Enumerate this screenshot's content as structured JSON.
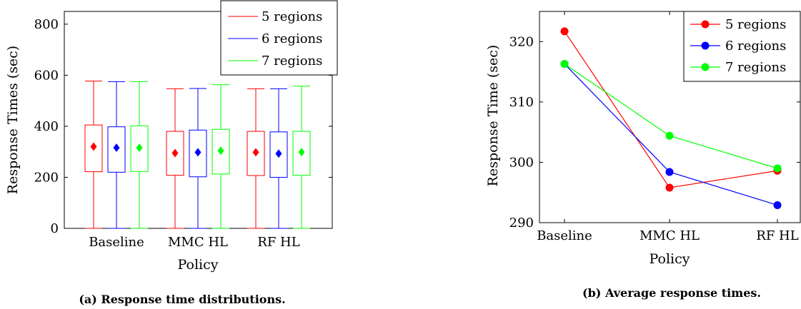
{
  "chart_data": [
    {
      "type": "box",
      "ylabel": "Response Times (sec)",
      "xlabel": "Policy",
      "ylim": [
        0,
        850
      ],
      "yticks": [
        0,
        200,
        400,
        600,
        800
      ],
      "categories": [
        "Baseline",
        "MMC HL",
        "RF HL"
      ],
      "legend_position": "top-right",
      "series": [
        {
          "name": "5 regions",
          "color": "#ff0000",
          "boxes": [
            {
              "min": 0,
              "q1": 222,
              "median": 320,
              "q3": 405,
              "max": 577
            },
            {
              "min": 0,
              "q1": 208,
              "median": 295,
              "q3": 380,
              "max": 547
            },
            {
              "min": 0,
              "q1": 207,
              "median": 298,
              "q3": 380,
              "max": 547
            }
          ]
        },
        {
          "name": "6 regions",
          "color": "#0000ff",
          "boxes": [
            {
              "min": 0,
              "q1": 220,
              "median": 316,
              "q3": 398,
              "max": 575
            },
            {
              "min": 0,
              "q1": 202,
              "median": 298,
              "q3": 385,
              "max": 548
            },
            {
              "min": 0,
              "q1": 200,
              "median": 293,
              "q3": 378,
              "max": 547
            }
          ]
        },
        {
          "name": "7 regions",
          "color": "#00ff00",
          "boxes": [
            {
              "min": 0,
              "q1": 223,
              "median": 316,
              "q3": 402,
              "max": 575
            },
            {
              "min": 0,
              "q1": 213,
              "median": 304,
              "q3": 388,
              "max": 563
            },
            {
              "min": 0,
              "q1": 208,
              "median": 299,
              "q3": 380,
              "max": 557
            }
          ]
        }
      ],
      "caption": "(a) Response time distributions."
    },
    {
      "type": "line",
      "ylabel": "Response Time (sec)",
      "xlabel": "Policy",
      "ylim": [
        290,
        325
      ],
      "yticks": [
        290,
        300,
        310,
        320
      ],
      "categories": [
        "Baseline",
        "MMC HL",
        "RF HL"
      ],
      "legend_position": "top-right",
      "series": [
        {
          "name": "5 regions",
          "color": "#ff0000",
          "values": [
            321.7,
            295.8,
            298.6
          ]
        },
        {
          "name": "6 regions",
          "color": "#0000ff",
          "values": [
            316.3,
            298.4,
            292.9
          ]
        },
        {
          "name": "7 regions",
          "color": "#00ff00",
          "values": [
            316.3,
            304.4,
            299.0
          ]
        }
      ],
      "caption": "(b) Average response times."
    }
  ]
}
